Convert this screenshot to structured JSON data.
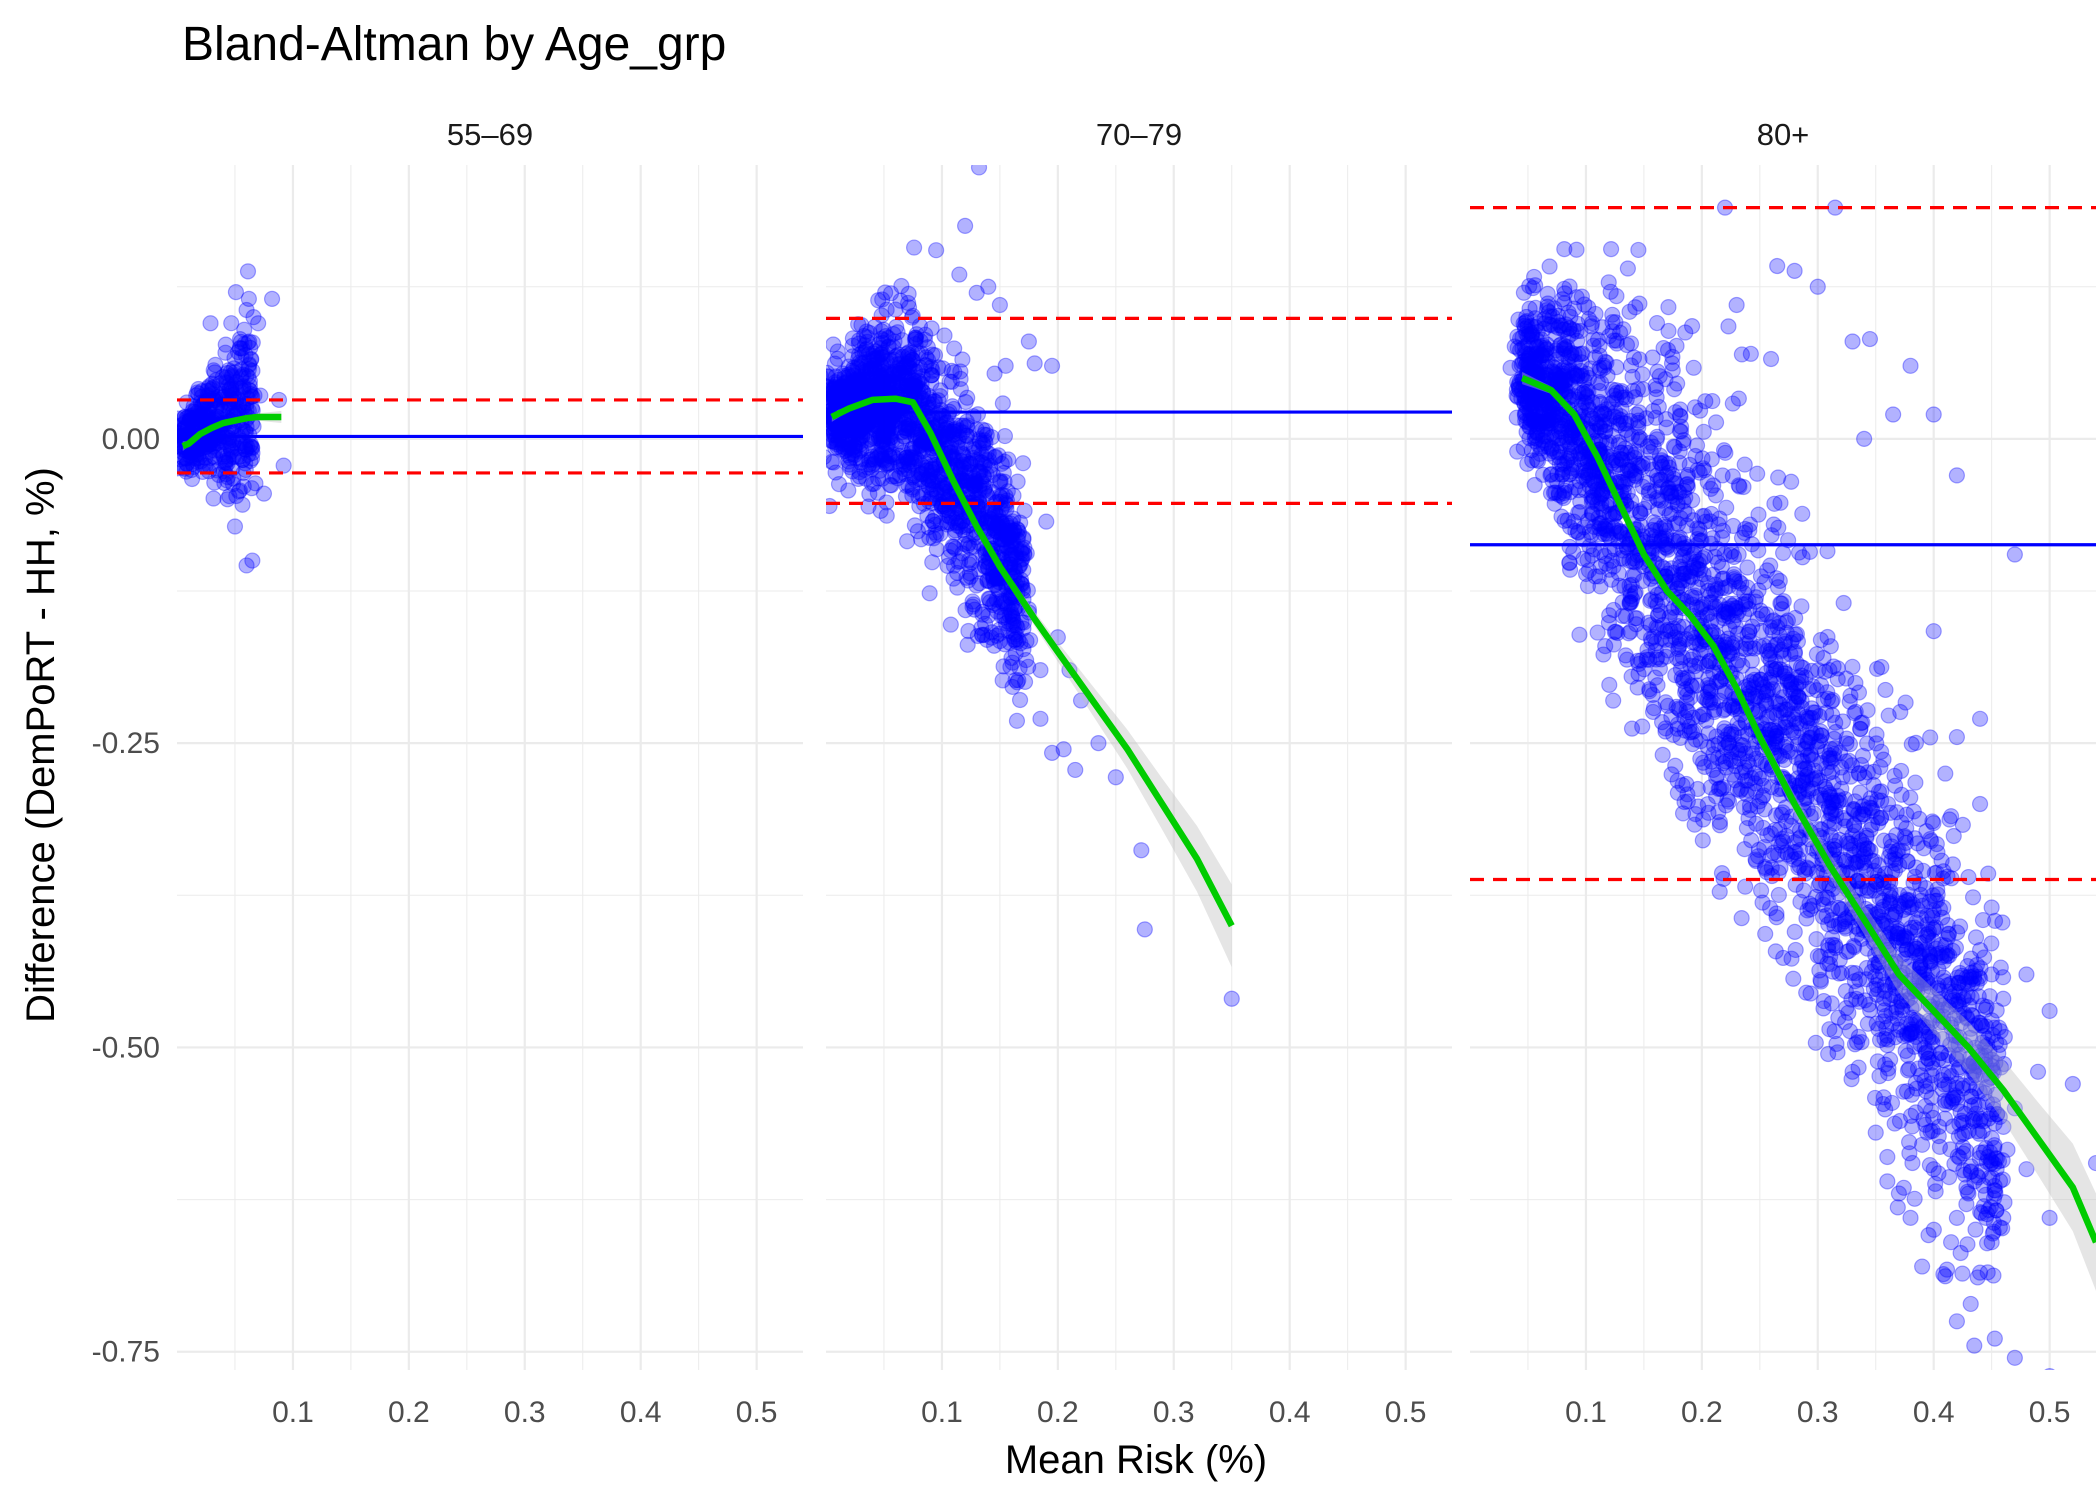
{
  "chart_data": {
    "type": "scatter",
    "title": "Bland-Altman by Age_grp",
    "xlabel": "Mean Risk (%)",
    "ylabel": "Difference (DemPoRT - HH, %)",
    "xlim": [
      0.0,
      0.54
    ],
    "ylim": [
      -0.765,
      0.225
    ],
    "x_ticks": [
      0.1,
      0.2,
      0.3,
      0.4,
      0.5
    ],
    "x_tick_labels": [
      "0.1",
      "0.2",
      "0.3",
      "0.4",
      "0.5"
    ],
    "y_ticks": [
      0.0,
      -0.25,
      -0.5,
      -0.75
    ],
    "y_tick_labels": [
      "0.00",
      "-0.25",
      "-0.50",
      "-0.75"
    ],
    "colors": {
      "points": "#0000ff",
      "mean_line": "#0000ff",
      "limits": "#ff0000",
      "smooth": "#00cc00",
      "band": "#bebebe",
      "grid": "#ebebeb"
    },
    "panels": [
      {
        "label": "55–69",
        "mean_diff": 0.002,
        "upper_loa": 0.032,
        "lower_loa": -0.028,
        "smooth": {
          "x": [
            0.005,
            0.01,
            0.02,
            0.03,
            0.04,
            0.05,
            0.06,
            0.07,
            0.08,
            0.09
          ],
          "y": [
            -0.006,
            -0.004,
            0.004,
            0.009,
            0.013,
            0.015,
            0.017,
            0.018,
            0.018,
            0.018
          ],
          "se": [
            0.004,
            0.002,
            0.001,
            0.001,
            0.001,
            0.001,
            0.002,
            0.003,
            0.004,
            0.005
          ]
        },
        "cloud": {
          "x_min": 0.004,
          "x_max": 0.065,
          "n": 450,
          "center": [
            [
              0.004,
              0.0
            ],
            [
              0.065,
              0.025
            ]
          ],
          "sd": [
            [
              0.004,
              0.01
            ],
            [
              0.065,
              0.04
            ]
          ]
        },
        "outliers": [
          [
            0.062,
            0.115
          ],
          [
            0.082,
            0.115
          ],
          [
            0.066,
            0.1
          ],
          [
            0.07,
            0.095
          ],
          [
            0.088,
            0.032
          ],
          [
            0.092,
            -0.022
          ],
          [
            0.065,
            -0.1
          ],
          [
            0.06,
            -0.104
          ],
          [
            0.075,
            -0.045
          ],
          [
            0.05,
            -0.072
          ]
        ]
      },
      {
        "label": "70–79",
        "mean_diff": 0.022,
        "upper_loa": 0.099,
        "lower_loa": -0.053,
        "smooth": {
          "x": [
            0.005,
            0.02,
            0.04,
            0.06,
            0.075,
            0.09,
            0.11,
            0.13,
            0.15,
            0.18,
            0.2,
            0.23,
            0.26,
            0.29,
            0.32,
            0.35
          ],
          "y": [
            0.018,
            0.025,
            0.032,
            0.033,
            0.03,
            0.005,
            -0.035,
            -0.072,
            -0.105,
            -0.148,
            -0.175,
            -0.215,
            -0.255,
            -0.3,
            -0.345,
            -0.4
          ],
          "se": [
            0.004,
            0.002,
            0.001,
            0.001,
            0.001,
            0.002,
            0.002,
            0.003,
            0.004,
            0.006,
            0.008,
            0.012,
            0.016,
            0.021,
            0.027,
            0.034
          ]
        },
        "cloud": {
          "x_min": 0.005,
          "x_max": 0.17,
          "n": 1600,
          "center": [
            [
              0.005,
              0.02
            ],
            [
              0.07,
              0.03
            ],
            [
              0.11,
              -0.03
            ],
            [
              0.17,
              -0.12
            ]
          ],
          "sd": [
            [
              0.005,
              0.02
            ],
            [
              0.07,
              0.04
            ],
            [
              0.11,
              0.045
            ],
            [
              0.17,
              0.04
            ]
          ]
        },
        "outliers": [
          [
            0.132,
            0.223
          ],
          [
            0.12,
            0.175
          ],
          [
            0.095,
            0.155
          ],
          [
            0.13,
            0.12
          ],
          [
            0.115,
            0.135
          ],
          [
            0.14,
            0.125
          ],
          [
            0.175,
            0.08
          ],
          [
            0.18,
            0.062
          ],
          [
            0.195,
            0.06
          ],
          [
            0.17,
            -0.02
          ],
          [
            0.19,
            -0.068
          ],
          [
            0.21,
            -0.19
          ],
          [
            0.22,
            -0.215
          ],
          [
            0.195,
            -0.258
          ],
          [
            0.205,
            -0.255
          ],
          [
            0.235,
            -0.25
          ],
          [
            0.215,
            -0.272
          ],
          [
            0.25,
            -0.278
          ],
          [
            0.272,
            -0.338
          ],
          [
            0.275,
            -0.403
          ],
          [
            0.35,
            -0.46
          ],
          [
            0.185,
            -0.19
          ],
          [
            0.16,
            -0.18
          ],
          [
            0.2,
            -0.163
          ],
          [
            0.175,
            -0.14
          ],
          [
            0.165,
            -0.2
          ],
          [
            0.15,
            0.11
          ],
          [
            0.155,
            0.06
          ],
          [
            0.145,
            -0.17
          ],
          [
            0.185,
            -0.23
          ]
        ]
      },
      {
        "label": "80+",
        "mean_diff": -0.087,
        "upper_loa": 0.19,
        "lower_loa": -0.362,
        "smooth": {
          "x": [
            0.045,
            0.07,
            0.09,
            0.11,
            0.13,
            0.15,
            0.17,
            0.19,
            0.21,
            0.23,
            0.25,
            0.28,
            0.31,
            0.34,
            0.37,
            0.4,
            0.43,
            0.46,
            0.49,
            0.52,
            0.54
          ],
          "y": [
            0.05,
            0.04,
            0.02,
            -0.015,
            -0.055,
            -0.095,
            -0.125,
            -0.145,
            -0.17,
            -0.205,
            -0.245,
            -0.3,
            -0.35,
            -0.395,
            -0.44,
            -0.47,
            -0.5,
            -0.535,
            -0.575,
            -0.615,
            -0.66
          ],
          "se": [
            0.005,
            0.003,
            0.002,
            0.002,
            0.002,
            0.002,
            0.003,
            0.003,
            0.004,
            0.005,
            0.006,
            0.008,
            0.01,
            0.012,
            0.015,
            0.018,
            0.021,
            0.025,
            0.03,
            0.036,
            0.04
          ]
        },
        "cloud": {
          "x_min": 0.045,
          "x_max": 0.46,
          "n": 3000,
          "center": [
            [
              0.045,
              0.05
            ],
            [
              0.08,
              0.03
            ],
            [
              0.15,
              -0.07
            ],
            [
              0.25,
              -0.22
            ],
            [
              0.35,
              -0.38
            ],
            [
              0.46,
              -0.56
            ]
          ],
          "sd": [
            [
              0.045,
              0.03
            ],
            [
              0.08,
              0.05
            ],
            [
              0.15,
              0.075
            ],
            [
              0.25,
              0.085
            ],
            [
              0.35,
              0.075
            ],
            [
              0.46,
              0.07
            ]
          ]
        },
        "outliers": [
          [
            0.22,
            0.19
          ],
          [
            0.315,
            0.19
          ],
          [
            0.265,
            0.142
          ],
          [
            0.28,
            0.138
          ],
          [
            0.3,
            0.125
          ],
          [
            0.23,
            0.11
          ],
          [
            0.33,
            0.08
          ],
          [
            0.345,
            0.082
          ],
          [
            0.38,
            0.06
          ],
          [
            0.365,
            0.02
          ],
          [
            0.4,
            0.02
          ],
          [
            0.34,
            0.0
          ],
          [
            0.42,
            -0.03
          ],
          [
            0.47,
            -0.095
          ],
          [
            0.4,
            -0.158
          ],
          [
            0.44,
            -0.23
          ],
          [
            0.31,
            -0.26
          ],
          [
            0.42,
            -0.245
          ],
          [
            0.41,
            -0.275
          ],
          [
            0.44,
            -0.3
          ],
          [
            0.415,
            -0.31
          ],
          [
            0.43,
            -0.36
          ],
          [
            0.45,
            -0.385
          ],
          [
            0.44,
            -0.42
          ],
          [
            0.45,
            -0.44
          ],
          [
            0.48,
            -0.44
          ],
          [
            0.5,
            -0.47
          ],
          [
            0.46,
            -0.46
          ],
          [
            0.44,
            -0.48
          ],
          [
            0.42,
            -0.51
          ],
          [
            0.47,
            -0.55
          ],
          [
            0.49,
            -0.52
          ],
          [
            0.52,
            -0.53
          ],
          [
            0.54,
            -0.595
          ],
          [
            0.36,
            -0.59
          ],
          [
            0.4,
            -0.6
          ],
          [
            0.42,
            -0.64
          ],
          [
            0.415,
            -0.66
          ],
          [
            0.43,
            -0.62
          ],
          [
            0.445,
            -0.64
          ],
          [
            0.46,
            -0.64
          ],
          [
            0.45,
            -0.66
          ],
          [
            0.44,
            -0.685
          ],
          [
            0.41,
            -0.688
          ],
          [
            0.39,
            -0.68
          ],
          [
            0.42,
            -0.725
          ],
          [
            0.435,
            -0.745
          ],
          [
            0.47,
            -0.755
          ],
          [
            0.5,
            -0.77
          ],
          [
            0.38,
            -0.64
          ],
          [
            0.36,
            -0.61
          ],
          [
            0.37,
            -0.62
          ],
          [
            0.35,
            -0.57
          ],
          [
            0.39,
            -0.58
          ],
          [
            0.33,
            -0.52
          ],
          [
            0.31,
            -0.485
          ],
          [
            0.29,
            -0.455
          ],
          [
            0.45,
            -0.51
          ],
          [
            0.48,
            -0.6
          ],
          [
            0.5,
            -0.64
          ]
        ]
      }
    ]
  }
}
